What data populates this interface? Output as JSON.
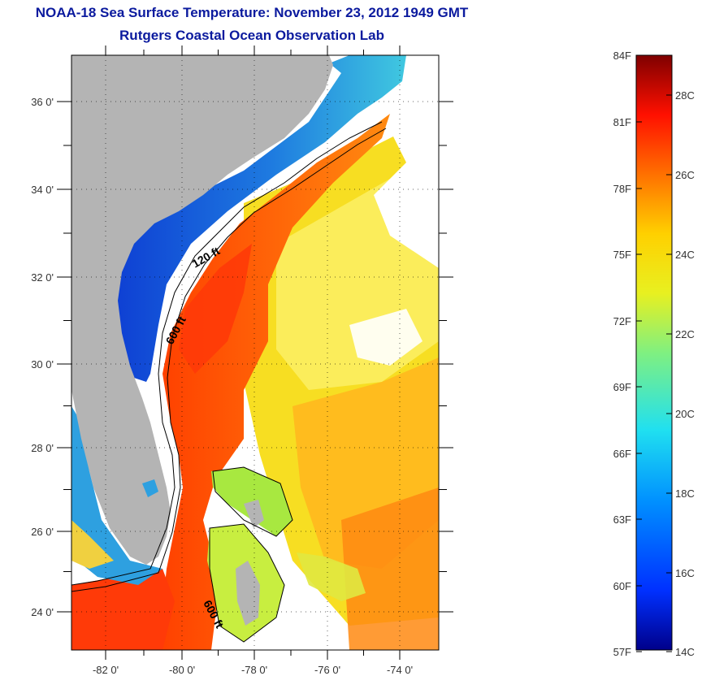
{
  "header": {
    "title": "NOAA-18 Sea Surface Temperature:  November 23, 2012 1949 GMT",
    "subtitle": "Rutgers Coastal Ocean Observation Lab"
  },
  "map": {
    "lat_labels": [
      "36 0'",
      "34 0'",
      "32 0'",
      "30 0'",
      "28 0'",
      "26 0'",
      "24 0'"
    ],
    "lon_labels": [
      "-82 0'",
      "-80 0'",
      "-78 0'",
      "-76 0'",
      "-74 0'"
    ],
    "contour_labels": [
      "120 ft",
      "600 ft",
      "600 ft"
    ],
    "colors": {
      "land": "#b4b4b4",
      "frame": "#000000"
    }
  },
  "colorbar": {
    "f_labels": [
      "84F",
      "81F",
      "78F",
      "75F",
      "72F",
      "69F",
      "66F",
      "63F",
      "60F",
      "57F"
    ],
    "c_labels": [
      "28C",
      "26C",
      "24C",
      "22C",
      "20C",
      "18C",
      "16C",
      "14C"
    ],
    "colors": [
      "#7f0000",
      "#c80000",
      "#ff2a00",
      "#ff8a00",
      "#ffe000",
      "#c0f040",
      "#40e0c0",
      "#00a0ff",
      "#0040ff",
      "#00008a"
    ]
  }
}
